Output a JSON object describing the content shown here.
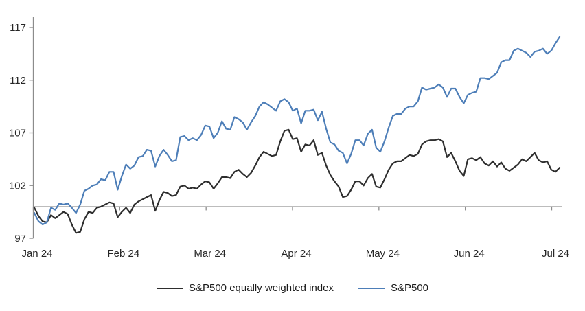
{
  "chart_data": {
    "type": "line",
    "title": "",
    "x_tick_labels": [
      "Jan 24",
      "Feb 24",
      "Mar 24",
      "Apr 24",
      "May 24",
      "Jun 24",
      "Jul 24"
    ],
    "y_tick_values": [
      97,
      102,
      107,
      112,
      117
    ],
    "ylim": [
      97,
      118
    ],
    "baseline_value": 100,
    "grid": "off",
    "legend_position": "bottom-center",
    "x_description": "Daily values, Jan 2024 through early Jul 2024, indexed to 100 at start of year",
    "axis_color": "#8c8c8c",
    "baseline_color": "#a6a6a6",
    "text_color": "#262626",
    "series": [
      {
        "name": "S&P500 equally weighted index",
        "color": "#2e2e2e",
        "values": [
          99.9,
          99.1,
          98.6,
          98.5,
          99.2,
          98.9,
          99.2,
          99.5,
          99.3,
          98.3,
          97.5,
          97.6,
          98.8,
          99.5,
          99.4,
          99.9,
          100.0,
          100.2,
          100.4,
          100.3,
          99.0,
          99.5,
          99.9,
          99.4,
          100.2,
          100.5,
          100.7,
          100.9,
          101.1,
          99.6,
          100.6,
          101.4,
          101.3,
          101.0,
          101.1,
          101.9,
          102.0,
          101.7,
          101.8,
          101.7,
          102.1,
          102.4,
          102.3,
          101.7,
          102.2,
          102.8,
          102.8,
          102.7,
          103.3,
          103.5,
          103.1,
          102.8,
          103.2,
          103.9,
          104.7,
          105.2,
          105.0,
          104.8,
          104.9,
          106.2,
          107.2,
          107.3,
          106.4,
          106.5,
          105.2,
          105.9,
          105.8,
          106.3,
          104.9,
          105.1,
          103.9,
          103.0,
          102.4,
          101.9,
          100.9,
          101.0,
          101.6,
          102.4,
          102.4,
          102.0,
          102.7,
          103.1,
          101.9,
          101.8,
          102.6,
          103.5,
          104.1,
          104.3,
          104.3,
          104.6,
          104.9,
          104.8,
          105.0,
          105.9,
          106.2,
          106.3,
          106.3,
          106.4,
          106.2,
          104.7,
          105.1,
          104.3,
          103.4,
          102.9,
          104.5,
          104.6,
          104.4,
          104.7,
          104.1,
          103.9,
          104.3,
          103.8,
          104.2,
          103.6,
          103.4,
          103.7,
          104.0,
          104.5,
          104.3,
          104.7,
          105.1,
          104.4,
          104.2,
          104.3,
          103.5,
          103.3,
          103.7
        ]
      },
      {
        "name": "S&P500",
        "color": "#4d7eb8",
        "values": [
          99.4,
          98.6,
          98.3,
          98.5,
          99.9,
          99.7,
          100.3,
          100.2,
          100.3,
          99.9,
          99.4,
          100.2,
          101.5,
          101.7,
          102.0,
          102.1,
          102.6,
          102.5,
          103.3,
          103.3,
          101.6,
          102.9,
          104.0,
          103.6,
          103.9,
          104.7,
          104.8,
          105.4,
          105.3,
          103.8,
          104.8,
          105.4,
          104.9,
          104.3,
          104.4,
          106.6,
          106.7,
          106.3,
          106.5,
          106.3,
          106.8,
          107.7,
          107.6,
          106.5,
          107.0,
          108.1,
          107.4,
          107.3,
          108.5,
          108.3,
          108.0,
          107.3,
          108.0,
          108.6,
          109.5,
          109.9,
          109.7,
          109.4,
          109.1,
          110.0,
          110.2,
          109.9,
          109.1,
          109.3,
          107.9,
          109.1,
          109.1,
          109.2,
          108.2,
          109.0,
          107.4,
          106.1,
          105.9,
          105.3,
          105.1,
          104.1,
          105.0,
          106.3,
          106.3,
          105.8,
          106.9,
          107.3,
          105.6,
          105.2,
          106.2,
          107.5,
          108.6,
          108.8,
          108.8,
          109.3,
          109.5,
          109.5,
          110.0,
          111.3,
          111.1,
          111.2,
          111.3,
          111.6,
          111.3,
          110.4,
          111.2,
          111.2,
          110.4,
          109.8,
          110.6,
          110.8,
          110.9,
          112.2,
          112.2,
          112.1,
          112.4,
          112.7,
          113.7,
          113.9,
          113.9,
          114.8,
          115.0,
          114.8,
          114.6,
          114.2,
          114.7,
          114.8,
          115.0,
          114.5,
          114.8,
          115.5,
          116.1
        ]
      }
    ]
  }
}
